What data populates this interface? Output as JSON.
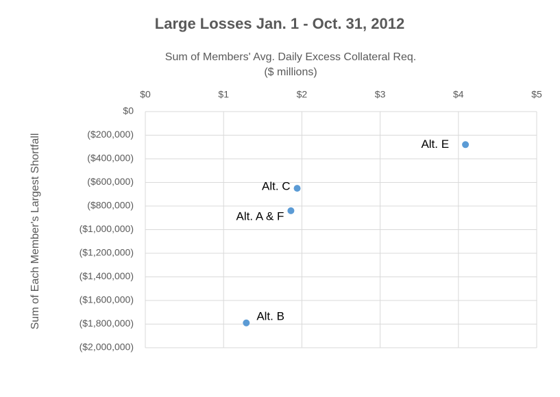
{
  "chart_data": {
    "type": "scatter",
    "title": "Large Losses Jan. 1 - Oct. 31, 2012",
    "x_label": [
      "Sum of Members' Avg. Daily Excess Collateral Req.",
      "($ millions)"
    ],
    "y_label": "Sum of Each Member's Largest Shortfall",
    "series": [
      {
        "color": "#5b9bd5",
        "labels": [
          "Alt. E",
          "Alt. C",
          "Alt. A & F",
          "Alt. B"
        ],
        "x": [
          4.09,
          1.94,
          1.86,
          1.29
        ],
        "values": [
          -280000,
          -650000,
          -840000,
          -1790000
        ]
      }
    ],
    "xlim": [
      0,
      5
    ],
    "xticks": [
      {
        "value": 0,
        "label": "$0"
      },
      {
        "value": 1,
        "label": "$1"
      },
      {
        "value": 2,
        "label": "$2"
      },
      {
        "value": 3,
        "label": "$3"
      },
      {
        "value": 4,
        "label": "$4"
      },
      {
        "value": 5,
        "label": "$5"
      }
    ],
    "ylim": [
      -2000000,
      0
    ],
    "yticks": [
      {
        "value": 0,
        "label": "$0"
      },
      {
        "value": -200000,
        "label": "($200,000)"
      },
      {
        "value": -400000,
        "label": "($400,000)"
      },
      {
        "value": -600000,
        "label": "($600,000)"
      },
      {
        "value": -800000,
        "label": "($800,000)"
      },
      {
        "value": -1000000,
        "label": "($1,000,000)"
      },
      {
        "value": -1200000,
        "label": "($1,200,000)"
      },
      {
        "value": -1400000,
        "label": "($1,400,000)"
      },
      {
        "value": -1600000,
        "label": "($1,600,000)"
      },
      {
        "value": -1800000,
        "label": "($1,800,000)"
      },
      {
        "value": -2000000,
        "label": "($2,000,000)"
      }
    ],
    "grid": true
  }
}
